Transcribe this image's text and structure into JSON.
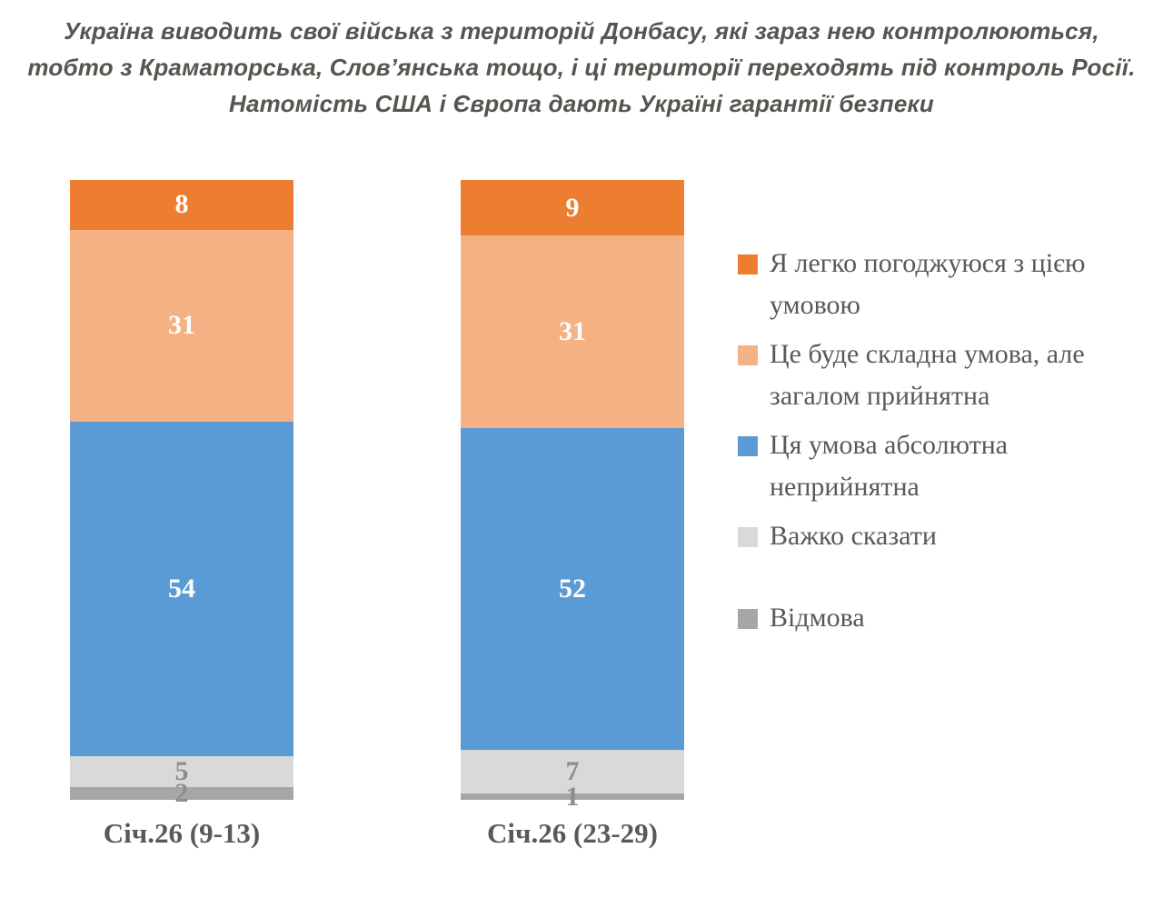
{
  "title": {
    "lines": [
      "Україна виводить свої війська з територій Донбасу, які зараз нею контролюються,",
      "тобто з Краматорська, Слов’янська тощо, і ці території переходять під контроль Росії.",
      "Натомість США і Європа дають Україні гарантії безпеки"
    ]
  },
  "chart_data": {
    "type": "bar",
    "subtype": "stacked-vertical",
    "title": "Україна виводить свої війська з територій Донбасу, які зараз нею контролюються, тобто з Краматорська, Слов’янська тощо, і ці території переходять під контроль Росії. Натомість США і Європа дають Україні гарантії безпеки",
    "categories": [
      "Січ.26 (9-13)",
      "Січ.26 (23-29)"
    ],
    "series": [
      {
        "name": "Я легко погоджуюся з цією умовою",
        "values": [
          8,
          9
        ],
        "color": "#ED7D31",
        "label_color": "#FFFFFF"
      },
      {
        "name": "Це буде складна умова, але загалом прийнятна",
        "values": [
          31,
          31
        ],
        "color": "#F4B183",
        "label_color": "#FFFFFF"
      },
      {
        "name": "Ця умова абсолютна неприйнятна",
        "values": [
          54,
          52
        ],
        "color": "#5B9BD5",
        "label_color": "#FFFFFF"
      },
      {
        "name": "Важко сказати",
        "values": [
          5,
          7
        ],
        "color": "#D9D9D9",
        "label_color": "#8b8d8f"
      },
      {
        "name": "Відмова",
        "values": [
          2,
          1
        ],
        "color": "#A6A6A6",
        "label_color": "#8b8d8f"
      }
    ],
    "ylim": [
      0,
      100
    ],
    "value_unit": "percent",
    "grid": false,
    "legend_position": "right",
    "text_colors": {
      "title": "#54564f",
      "axis_labels": "#595959",
      "legend": "#595959"
    }
  }
}
